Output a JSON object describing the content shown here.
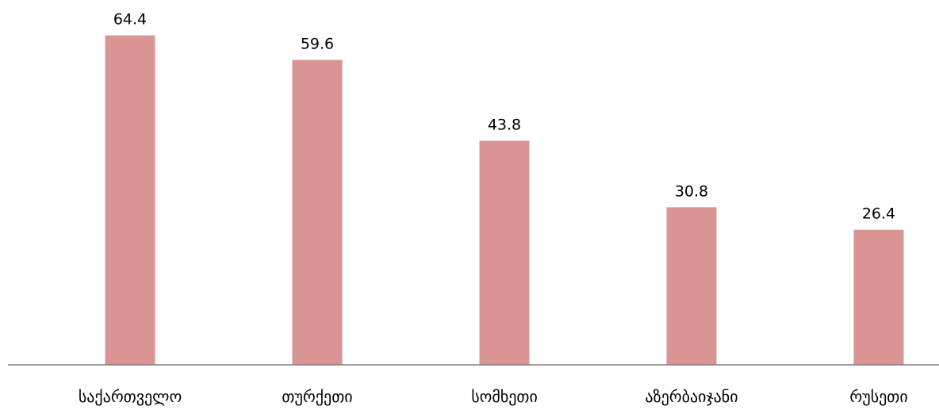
{
  "chart_data": {
    "type": "bar",
    "categories": [
      "საქართველო",
      "თურქეთი",
      "სომხეთი",
      "აზერბაიჯანი",
      "რუსეთი"
    ],
    "values": [
      64.4,
      59.6,
      43.8,
      30.8,
      26.4
    ],
    "title": "",
    "xlabel": "",
    "ylabel": "",
    "ylim": [
      0,
      66
    ],
    "grid": false,
    "legend": "none",
    "data_labels": true,
    "bar_color": "#d99594",
    "axis_color": "#7f7f7f"
  }
}
